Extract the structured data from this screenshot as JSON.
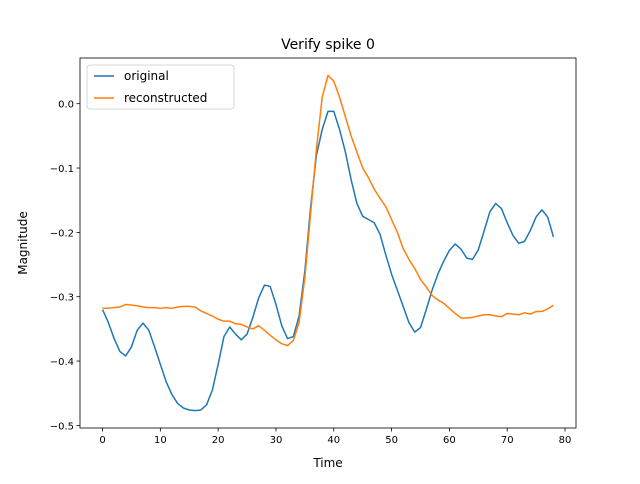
{
  "chart_data": {
    "type": "line",
    "title": "Verify spike 0",
    "x_label": "Time",
    "y_label": "Magnitude",
    "x": [
      0,
      1,
      2,
      3,
      4,
      5,
      6,
      7,
      8,
      9,
      10,
      11,
      12,
      13,
      14,
      15,
      16,
      17,
      18,
      19,
      20,
      21,
      22,
      23,
      24,
      25,
      26,
      27,
      28,
      29,
      30,
      31,
      32,
      33,
      34,
      35,
      36,
      37,
      38,
      39,
      40,
      41,
      42,
      43,
      44,
      45,
      46,
      47,
      48,
      49,
      50,
      51,
      52,
      53,
      54,
      55,
      56,
      57,
      58,
      59,
      60,
      61,
      62,
      63,
      64,
      65,
      66,
      67,
      68,
      69,
      70,
      71,
      72,
      73,
      74,
      75,
      76,
      77,
      78
    ],
    "series": [
      {
        "name": "original",
        "color": "#1f77b4",
        "values": [
          -0.32,
          -0.34,
          -0.365,
          -0.385,
          -0.392,
          -0.378,
          -0.352,
          -0.341,
          -0.352,
          -0.378,
          -0.405,
          -0.432,
          -0.452,
          -0.466,
          -0.473,
          -0.476,
          -0.477,
          -0.476,
          -0.468,
          -0.445,
          -0.405,
          -0.362,
          -0.347,
          -0.358,
          -0.367,
          -0.358,
          -0.332,
          -0.302,
          -0.282,
          -0.284,
          -0.312,
          -0.345,
          -0.365,
          -0.362,
          -0.33,
          -0.26,
          -0.16,
          -0.08,
          -0.04,
          -0.012,
          -0.012,
          -0.04,
          -0.075,
          -0.118,
          -0.155,
          -0.175,
          -0.18,
          -0.185,
          -0.203,
          -0.235,
          -0.265,
          -0.29,
          -0.315,
          -0.34,
          -0.355,
          -0.348,
          -0.32,
          -0.29,
          -0.265,
          -0.245,
          -0.228,
          -0.218,
          -0.226,
          -0.24,
          -0.242,
          -0.227,
          -0.198,
          -0.168,
          -0.155,
          -0.163,
          -0.185,
          -0.205,
          -0.217,
          -0.214,
          -0.197,
          -0.176,
          -0.165,
          -0.176,
          -0.207
        ]
      },
      {
        "name": "reconstructed",
        "color": "#ff7f0e",
        "values": [
          -0.318,
          -0.318,
          -0.317,
          -0.316,
          -0.312,
          -0.313,
          -0.314,
          -0.316,
          -0.317,
          -0.317,
          -0.318,
          -0.317,
          -0.318,
          -0.316,
          -0.315,
          -0.315,
          -0.316,
          -0.322,
          -0.326,
          -0.33,
          -0.335,
          -0.338,
          -0.338,
          -0.342,
          -0.343,
          -0.347,
          -0.35,
          -0.345,
          -0.352,
          -0.36,
          -0.367,
          -0.373,
          -0.376,
          -0.368,
          -0.34,
          -0.27,
          -0.17,
          -0.07,
          0.01,
          0.044,
          0.035,
          0.01,
          -0.02,
          -0.05,
          -0.075,
          -0.1,
          -0.115,
          -0.133,
          -0.147,
          -0.16,
          -0.18,
          -0.2,
          -0.225,
          -0.242,
          -0.256,
          -0.273,
          -0.285,
          -0.298,
          -0.305,
          -0.31,
          -0.318,
          -0.326,
          -0.333,
          -0.333,
          -0.332,
          -0.33,
          -0.328,
          -0.328,
          -0.33,
          -0.331,
          -0.326,
          -0.327,
          -0.328,
          -0.325,
          -0.327,
          -0.323,
          -0.323,
          -0.319,
          -0.313
        ]
      }
    ],
    "xlim": [
      -3.9,
      81.9
    ],
    "ylim": [
      -0.504,
      0.071
    ],
    "xticks": [
      0,
      10,
      20,
      30,
      40,
      50,
      60,
      70,
      80
    ],
    "yticks": [
      {
        "value": -0.5,
        "label": "−0.5"
      },
      {
        "value": -0.4,
        "label": "−0.4"
      },
      {
        "value": -0.3,
        "label": "−0.3"
      },
      {
        "value": -0.2,
        "label": "−0.2"
      },
      {
        "value": -0.1,
        "label": "−0.1"
      },
      {
        "value": 0.0,
        "label": "0.0"
      }
    ],
    "legend": "upper left"
  }
}
